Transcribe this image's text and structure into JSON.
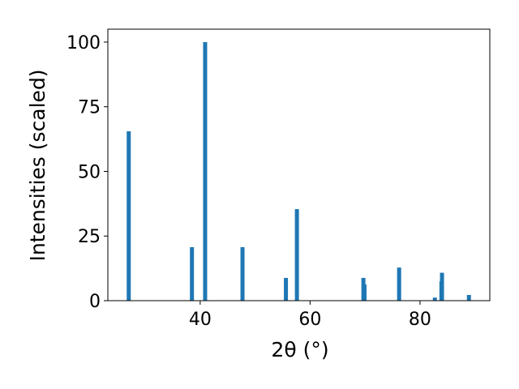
{
  "chart_data": {
    "type": "bar",
    "x": [
      27.0,
      38.5,
      40.9,
      47.7,
      55.6,
      57.6,
      69.7,
      69.9,
      76.2,
      82.7,
      83.9,
      84.0,
      88.9
    ],
    "values": [
      65.5,
      20.7,
      100,
      20.7,
      8.8,
      35.4,
      8.8,
      6.3,
      12.8,
      1.2,
      7.5,
      10.8,
      2.2
    ],
    "color": "#1f77b4",
    "xlabel": "2θ (°)",
    "ylabel": "Intensities (scaled)",
    "xlim": [
      23.2,
      92.7
    ],
    "ylim": [
      0,
      105
    ],
    "xticks": [
      40,
      60,
      80
    ],
    "yticks": [
      0,
      25,
      50,
      75,
      100
    ]
  }
}
